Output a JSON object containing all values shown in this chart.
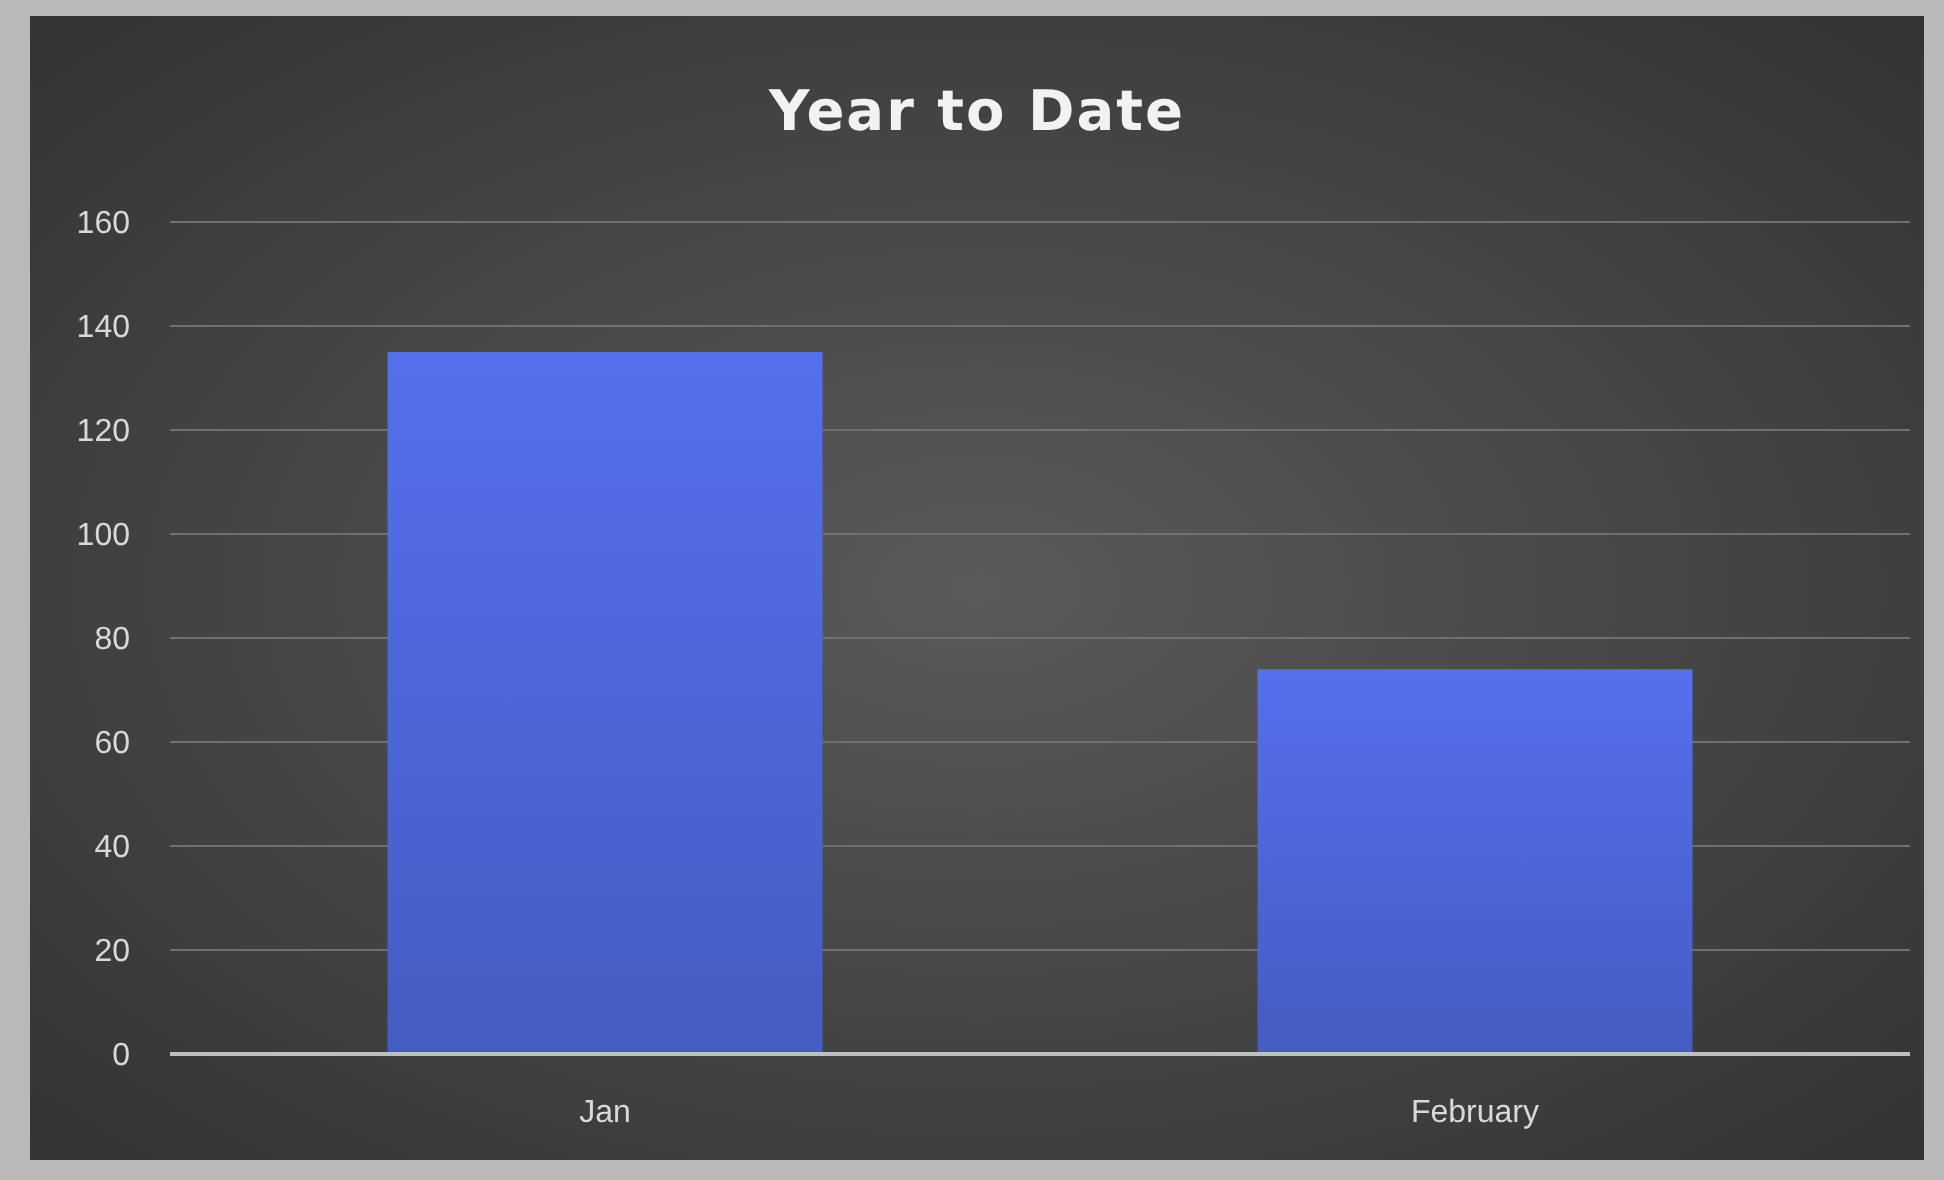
{
  "chart_data": {
    "type": "bar",
    "title": "Year to Date",
    "categories": [
      "Jan",
      "February"
    ],
    "values": [
      135,
      74
    ],
    "color": "#4a63d0",
    "ylim": [
      0,
      160
    ],
    "yticks": [
      0,
      20,
      40,
      60,
      80,
      100,
      120,
      140,
      160
    ],
    "grid": "y"
  }
}
